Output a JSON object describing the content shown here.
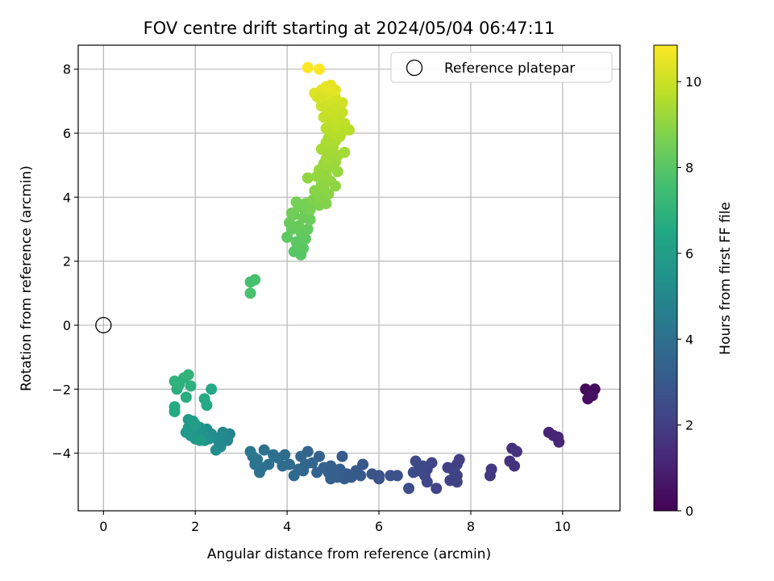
{
  "chart_data": {
    "type": "scatter",
    "title": "FOV centre drift starting at 2024/05/04 06:47:11",
    "xlabel": "Angular distance from reference (arcmin)",
    "ylabel": "Rotation from reference (arcmin)",
    "xlim": [
      -0.55,
      11.25
    ],
    "ylim": [
      -5.8,
      8.75
    ],
    "xticks": [
      0,
      2,
      4,
      6,
      8,
      10
    ],
    "yticks": [
      -4,
      -2,
      0,
      2,
      4,
      6,
      8
    ],
    "xtick_labels": [
      "0",
      "2",
      "4",
      "6",
      "8",
      "10"
    ],
    "ytick_labels": [
      "−4",
      "−2",
      "0",
      "2",
      "4",
      "6",
      "8"
    ],
    "grid": true,
    "legend": {
      "placement": "top-right",
      "entries": [
        "Reference platepar"
      ]
    },
    "reference_point": {
      "name": "Reference platepar",
      "x": 0,
      "y": 0
    },
    "colorbar": {
      "label": "Hours from first FF file",
      "range": [
        0,
        10.85
      ],
      "ticks": [
        0,
        2,
        4,
        6,
        8,
        10
      ],
      "tick_labels": [
        "0",
        "2",
        "4",
        "6",
        "8",
        "10"
      ],
      "colormap": "viridis"
    },
    "points": [
      [
        10.5,
        -2.0,
        0.3
      ],
      [
        10.6,
        -2.1,
        0.35
      ],
      [
        10.7,
        -2.0,
        0.3
      ],
      [
        10.55,
        -2.3,
        0.4
      ],
      [
        10.65,
        -2.2,
        0.45
      ],
      [
        9.7,
        -3.35,
        1.1
      ],
      [
        9.9,
        -3.5,
        1.15
      ],
      [
        9.92,
        -3.65,
        1.2
      ],
      [
        9.8,
        -3.45,
        1.15
      ],
      [
        8.9,
        -3.85,
        1.5
      ],
      [
        9.0,
        -3.95,
        1.55
      ],
      [
        8.85,
        -4.25,
        1.55
      ],
      [
        8.95,
        -4.4,
        1.6
      ],
      [
        8.45,
        -4.5,
        1.75
      ],
      [
        8.42,
        -4.7,
        1.8
      ],
      [
        7.75,
        -4.2,
        2.0
      ],
      [
        7.7,
        -4.35,
        2.0
      ],
      [
        7.6,
        -4.5,
        2.05
      ],
      [
        7.7,
        -4.7,
        2.05
      ],
      [
        7.55,
        -4.85,
        2.1
      ],
      [
        7.7,
        -4.9,
        2.1
      ],
      [
        7.5,
        -4.45,
        2.1
      ],
      [
        7.65,
        -4.6,
        2.15
      ],
      [
        7.25,
        -5.1,
        2.2
      ],
      [
        7.15,
        -4.3,
        2.25
      ],
      [
        7.05,
        -4.5,
        2.3
      ],
      [
        7.0,
        -4.7,
        2.3
      ],
      [
        6.95,
        -4.4,
        2.35
      ],
      [
        6.85,
        -4.55,
        2.4
      ],
      [
        6.8,
        -4.25,
        2.4
      ],
      [
        6.75,
        -4.6,
        2.45
      ],
      [
        7.05,
        -4.9,
        2.3
      ],
      [
        6.65,
        -5.1,
        2.55
      ],
      [
        6.4,
        -4.7,
        2.65
      ],
      [
        6.25,
        -4.7,
        2.7
      ],
      [
        6.0,
        -4.8,
        2.8
      ],
      [
        5.85,
        -4.65,
        2.85
      ],
      [
        6.0,
        -4.7,
        2.8
      ],
      [
        5.65,
        -4.35,
        2.95
      ],
      [
        5.6,
        -4.7,
        3.0
      ],
      [
        5.5,
        -4.55,
        3.05
      ],
      [
        5.4,
        -4.75,
        3.05
      ],
      [
        5.3,
        -4.65,
        3.1
      ],
      [
        5.25,
        -4.8,
        3.15
      ],
      [
        5.2,
        -4.1,
        3.15
      ],
      [
        5.15,
        -4.5,
        3.2
      ],
      [
        5.1,
        -4.75,
        3.2
      ],
      [
        5.05,
        -4.55,
        3.25
      ],
      [
        4.95,
        -4.8,
        3.25
      ],
      [
        4.9,
        -4.6,
        3.3
      ],
      [
        4.95,
        -4.4,
        3.3
      ],
      [
        4.8,
        -4.45,
        3.35
      ],
      [
        4.7,
        -4.1,
        3.4
      ],
      [
        4.65,
        -4.6,
        3.45
      ],
      [
        4.55,
        -4.3,
        3.5
      ],
      [
        4.45,
        -3.95,
        3.5
      ],
      [
        4.4,
        -4.35,
        3.55
      ],
      [
        4.35,
        -4.55,
        3.6
      ],
      [
        4.3,
        -4.1,
        3.6
      ],
      [
        4.25,
        -4.5,
        3.65
      ],
      [
        4.15,
        -4.7,
        3.7
      ],
      [
        4.05,
        -4.35,
        3.75
      ],
      [
        3.95,
        -4.05,
        3.8
      ],
      [
        3.9,
        -4.4,
        3.85
      ],
      [
        3.8,
        -4.15,
        3.9
      ],
      [
        3.7,
        -4.05,
        3.95
      ],
      [
        3.6,
        -4.35,
        4.0
      ],
      [
        3.5,
        -3.9,
        4.05
      ],
      [
        3.45,
        -4.45,
        4.1
      ],
      [
        3.4,
        -4.6,
        4.1
      ],
      [
        3.35,
        -4.2,
        4.15
      ],
      [
        3.3,
        -4.35,
        4.2
      ],
      [
        3.25,
        -4.1,
        4.25
      ],
      [
        3.2,
        -3.95,
        4.3
      ],
      [
        2.75,
        -3.4,
        4.9
      ],
      [
        2.7,
        -3.6,
        4.95
      ],
      [
        2.65,
        -3.5,
        5.0
      ],
      [
        2.6,
        -3.35,
        5.05
      ],
      [
        2.55,
        -3.8,
        5.1
      ],
      [
        2.5,
        -3.6,
        5.15
      ],
      [
        2.45,
        -3.9,
        5.2
      ],
      [
        2.4,
        -3.5,
        5.25
      ],
      [
        2.35,
        -3.4,
        5.3
      ],
      [
        2.3,
        -3.55,
        5.35
      ],
      [
        2.25,
        -3.25,
        5.4
      ],
      [
        2.2,
        -3.6,
        5.45
      ],
      [
        2.15,
        -3.4,
        5.5
      ],
      [
        2.1,
        -3.2,
        5.55
      ],
      [
        2.05,
        -3.45,
        5.6
      ],
      [
        2.0,
        -3.55,
        5.65
      ],
      [
        1.95,
        -3.3,
        5.7
      ],
      [
        1.9,
        -3.45,
        5.75
      ],
      [
        1.85,
        -3.2,
        5.8
      ],
      [
        1.8,
        -3.35,
        5.85
      ],
      [
        1.85,
        -2.95,
        5.9
      ],
      [
        1.95,
        -3.0,
        5.95
      ],
      [
        2.0,
        -3.1,
        6.0
      ],
      [
        2.1,
        -3.6,
        5.9
      ],
      [
        2.35,
        -2.0,
        6.5
      ],
      [
        2.2,
        -2.3,
        6.6
      ],
      [
        2.25,
        -2.5,
        6.55
      ],
      [
        1.8,
        -2.25,
        6.7
      ],
      [
        1.6,
        -2.0,
        6.8
      ],
      [
        1.9,
        -1.9,
        6.85
      ],
      [
        1.65,
        -1.85,
        6.9
      ],
      [
        1.75,
        -1.65,
        6.95
      ],
      [
        1.55,
        -1.75,
        7.0
      ],
      [
        1.85,
        -1.55,
        7.05
      ],
      [
        1.55,
        -2.55,
        6.6
      ],
      [
        1.55,
        -2.7,
        6.65
      ],
      [
        3.2,
        1.35,
        7.6
      ],
      [
        3.3,
        1.42,
        7.65
      ],
      [
        3.2,
        1.0,
        7.7
      ],
      [
        4.3,
        2.2,
        8.0
      ],
      [
        4.15,
        2.3,
        8.0
      ],
      [
        4.35,
        2.4,
        8.05
      ],
      [
        4.0,
        2.75,
        8.1
      ],
      [
        4.2,
        2.6,
        8.1
      ],
      [
        4.4,
        2.7,
        8.15
      ],
      [
        4.1,
        3.0,
        8.2
      ],
      [
        4.3,
        2.9,
        8.2
      ],
      [
        4.45,
        3.0,
        8.25
      ],
      [
        4.05,
        3.2,
        8.3
      ],
      [
        4.25,
        3.1,
        8.3
      ],
      [
        4.5,
        3.3,
        8.35
      ],
      [
        4.15,
        3.45,
        8.4
      ],
      [
        4.35,
        3.35,
        8.4
      ],
      [
        4.1,
        3.5,
        8.45
      ],
      [
        4.4,
        3.55,
        8.45
      ],
      [
        4.25,
        3.7,
        8.5
      ],
      [
        4.2,
        3.85,
        8.55
      ],
      [
        4.4,
        3.8,
        8.6
      ],
      [
        4.5,
        3.6,
        8.6
      ],
      [
        4.55,
        3.9,
        8.7
      ],
      [
        4.7,
        3.75,
        8.75
      ],
      [
        4.85,
        3.8,
        8.8
      ],
      [
        4.7,
        4.0,
        8.85
      ],
      [
        4.9,
        4.1,
        8.9
      ],
      [
        4.6,
        4.2,
        8.9
      ],
      [
        4.8,
        4.25,
        8.95
      ],
      [
        5.05,
        4.35,
        9.0
      ],
      [
        4.75,
        4.4,
        9.0
      ],
      [
        4.95,
        4.5,
        9.05
      ],
      [
        4.45,
        4.6,
        9.05
      ],
      [
        4.65,
        4.65,
        9.1
      ],
      [
        4.85,
        4.7,
        9.1
      ],
      [
        5.1,
        4.8,
        9.15
      ],
      [
        4.7,
        4.85,
        9.15
      ],
      [
        4.95,
        4.95,
        9.2
      ],
      [
        4.8,
        5.05,
        9.2
      ],
      [
        5.05,
        5.1,
        9.25
      ],
      [
        4.85,
        5.2,
        9.3
      ],
      [
        5.1,
        5.3,
        9.3
      ],
      [
        4.95,
        5.4,
        9.35
      ],
      [
        5.25,
        5.4,
        9.35
      ],
      [
        4.75,
        5.5,
        9.4
      ],
      [
        5.0,
        5.55,
        9.4
      ],
      [
        4.85,
        5.7,
        9.45
      ],
      [
        5.05,
        5.75,
        9.5
      ],
      [
        4.9,
        5.85,
        9.5
      ],
      [
        5.15,
        5.9,
        9.6
      ],
      [
        5.0,
        6.0,
        9.65
      ],
      [
        5.2,
        6.05,
        9.65
      ],
      [
        5.35,
        6.1,
        9.7
      ],
      [
        4.85,
        6.15,
        9.7
      ],
      [
        5.05,
        6.2,
        9.75
      ],
      [
        5.25,
        6.3,
        9.75
      ],
      [
        4.95,
        6.35,
        9.8
      ],
      [
        5.1,
        6.45,
        9.85
      ],
      [
        4.8,
        6.5,
        9.85
      ],
      [
        5.0,
        6.55,
        9.9
      ],
      [
        5.2,
        6.65,
        9.9
      ],
      [
        4.9,
        6.7,
        9.95
      ],
      [
        5.1,
        6.8,
        9.95
      ],
      [
        4.75,
        6.85,
        10.0
      ],
      [
        5.0,
        6.9,
        10.0
      ],
      [
        5.2,
        6.95,
        10.05
      ],
      [
        4.9,
        7.0,
        10.1
      ],
      [
        5.05,
        7.1,
        10.15
      ],
      [
        4.65,
        7.15,
        10.2
      ],
      [
        4.85,
        7.2,
        10.25
      ],
      [
        4.6,
        7.25,
        10.3
      ],
      [
        4.95,
        7.3,
        10.3
      ],
      [
        4.75,
        7.35,
        10.35
      ],
      [
        5.05,
        7.35,
        10.4
      ],
      [
        4.85,
        7.45,
        10.45
      ],
      [
        4.95,
        7.5,
        10.5
      ],
      [
        4.7,
        7.1,
        10.2
      ],
      [
        4.45,
        8.05,
        10.8
      ],
      [
        4.7,
        8.0,
        10.85
      ]
    ]
  }
}
